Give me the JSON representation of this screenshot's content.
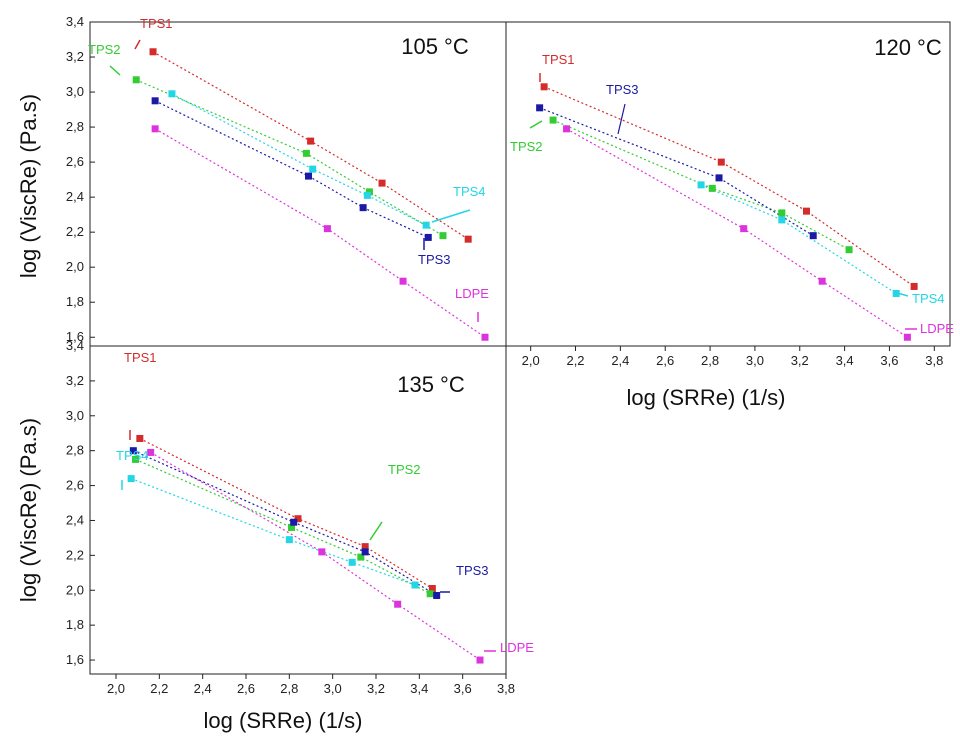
{
  "chart_data": [
    {
      "type": "scatter",
      "title": "105 °C",
      "xlabel": "",
      "ylabel": "log (ViscRe) (Pa.s)",
      "xlim": [
        1.87,
        3.85
      ],
      "ylim": [
        1.55,
        3.4
      ],
      "xticks": [],
      "yticks": [
        "1,6",
        "1,8",
        "2,0",
        "2,2",
        "2,4",
        "2,6",
        "2,8",
        "3,0",
        "3,2",
        "3,4"
      ],
      "series": [
        {
          "name": "TPS1",
          "color": "#d42b2b",
          "x": [
            2.17,
            2.92,
            3.26,
            3.67
          ],
          "y": [
            3.23,
            2.72,
            2.48,
            2.16
          ]
        },
        {
          "name": "TPS2",
          "color": "#33cc33",
          "x": [
            2.09,
            2.9,
            3.2,
            3.55
          ],
          "y": [
            3.07,
            2.65,
            2.43,
            2.18
          ]
        },
        {
          "name": "TPS3",
          "color": "#1a1aa6",
          "x": [
            2.18,
            2.91,
            3.17,
            3.48
          ],
          "y": [
            2.95,
            2.52,
            2.34,
            2.17
          ]
        },
        {
          "name": "TPS4",
          "color": "#22d6e6",
          "x": [
            2.26,
            2.93,
            3.19,
            3.47
          ],
          "y": [
            2.99,
            2.56,
            2.41,
            2.24
          ]
        },
        {
          "name": "LDPE",
          "color": "#dd33dd",
          "x": [
            2.18,
            3.0,
            3.36,
            3.75
          ],
          "y": [
            2.79,
            2.22,
            1.92,
            1.6
          ]
        }
      ],
      "annotations": [
        "TPS1",
        "TPS2",
        "TPS3",
        "TPS4",
        "LDPE"
      ]
    },
    {
      "type": "scatter",
      "title": "120 °C",
      "xlabel": "log (SRRe) (1/s)",
      "ylabel": "",
      "xlim": [
        1.89,
        3.87
      ],
      "ylim": [
        1.55,
        3.4
      ],
      "xticks": [
        "2,0",
        "2,2",
        "2,4",
        "2,6",
        "2,8",
        "3,0",
        "3,2",
        "3,4",
        "3,6",
        "3,8"
      ],
      "yticks": [],
      "series": [
        {
          "name": "TPS1",
          "color": "#d42b2b",
          "x": [
            2.06,
            2.85,
            3.23,
            3.71
          ],
          "y": [
            3.03,
            2.6,
            2.32,
            1.89
          ]
        },
        {
          "name": "TPS2",
          "color": "#33cc33",
          "x": [
            2.1,
            2.81,
            3.12,
            3.42
          ],
          "y": [
            2.84,
            2.45,
            2.31,
            2.1
          ]
        },
        {
          "name": "TPS3",
          "color": "#1a1aa6",
          "x": [
            2.04,
            2.84,
            3.26
          ],
          "y": [
            2.91,
            2.51,
            2.18
          ]
        },
        {
          "name": "TPS4",
          "color": "#22d6e6",
          "x": [
            2.76,
            3.12,
            3.63
          ],
          "y": [
            2.47,
            2.27,
            1.85
          ]
        },
        {
          "name": "LDPE",
          "color": "#dd33dd",
          "x": [
            2.16,
            2.95,
            3.3,
            3.68
          ],
          "y": [
            2.79,
            2.22,
            1.92,
            1.6
          ]
        }
      ],
      "annotations": [
        "TPS1",
        "TPS3",
        "TPS2",
        "TPS4",
        "LDPE"
      ]
    },
    {
      "type": "scatter",
      "title": "135 °C",
      "xlabel": "log (SRRe) (1/s)",
      "ylabel": "log (ViscRe) (Pa.s)",
      "xlim": [
        1.88,
        3.8
      ],
      "ylim": [
        1.52,
        3.4
      ],
      "xticks": [
        "2,0",
        "2,2",
        "2,4",
        "2,6",
        "2,8",
        "3,0",
        "3,2",
        "3,4",
        "3,6",
        "3,8"
      ],
      "yticks": [
        "1,6",
        "1,8",
        "2,0",
        "2,2",
        "2,4",
        "2,6",
        "2,8",
        "3,0",
        "3,2",
        "3,4"
      ],
      "series": [
        {
          "name": "TPS1",
          "color": "#d42b2b",
          "x": [
            2.11,
            2.84,
            3.15,
            3.46
          ],
          "y": [
            2.87,
            2.41,
            2.25,
            2.01
          ]
        },
        {
          "name": "TPS2",
          "color": "#33cc33",
          "x": [
            2.09,
            2.81,
            3.13,
            3.45
          ],
          "y": [
            2.75,
            2.36,
            2.19,
            1.98
          ]
        },
        {
          "name": "TPS3",
          "color": "#1a1aa6",
          "x": [
            2.08,
            2.82,
            3.15,
            3.48
          ],
          "y": [
            2.8,
            2.39,
            2.22,
            1.97
          ]
        },
        {
          "name": "TPS4",
          "color": "#22d6e6",
          "x": [
            2.07,
            2.8,
            3.09,
            3.38
          ],
          "y": [
            2.64,
            2.29,
            2.16,
            2.03
          ]
        },
        {
          "name": "LDPE",
          "color": "#dd33dd",
          "x": [
            2.16,
            2.95,
            3.3,
            3.68
          ],
          "y": [
            2.79,
            2.22,
            1.92,
            1.6
          ]
        }
      ],
      "annotations": [
        "TPS1",
        "TPS2",
        "TPS3",
        "TPS4",
        "LDPE"
      ]
    }
  ]
}
